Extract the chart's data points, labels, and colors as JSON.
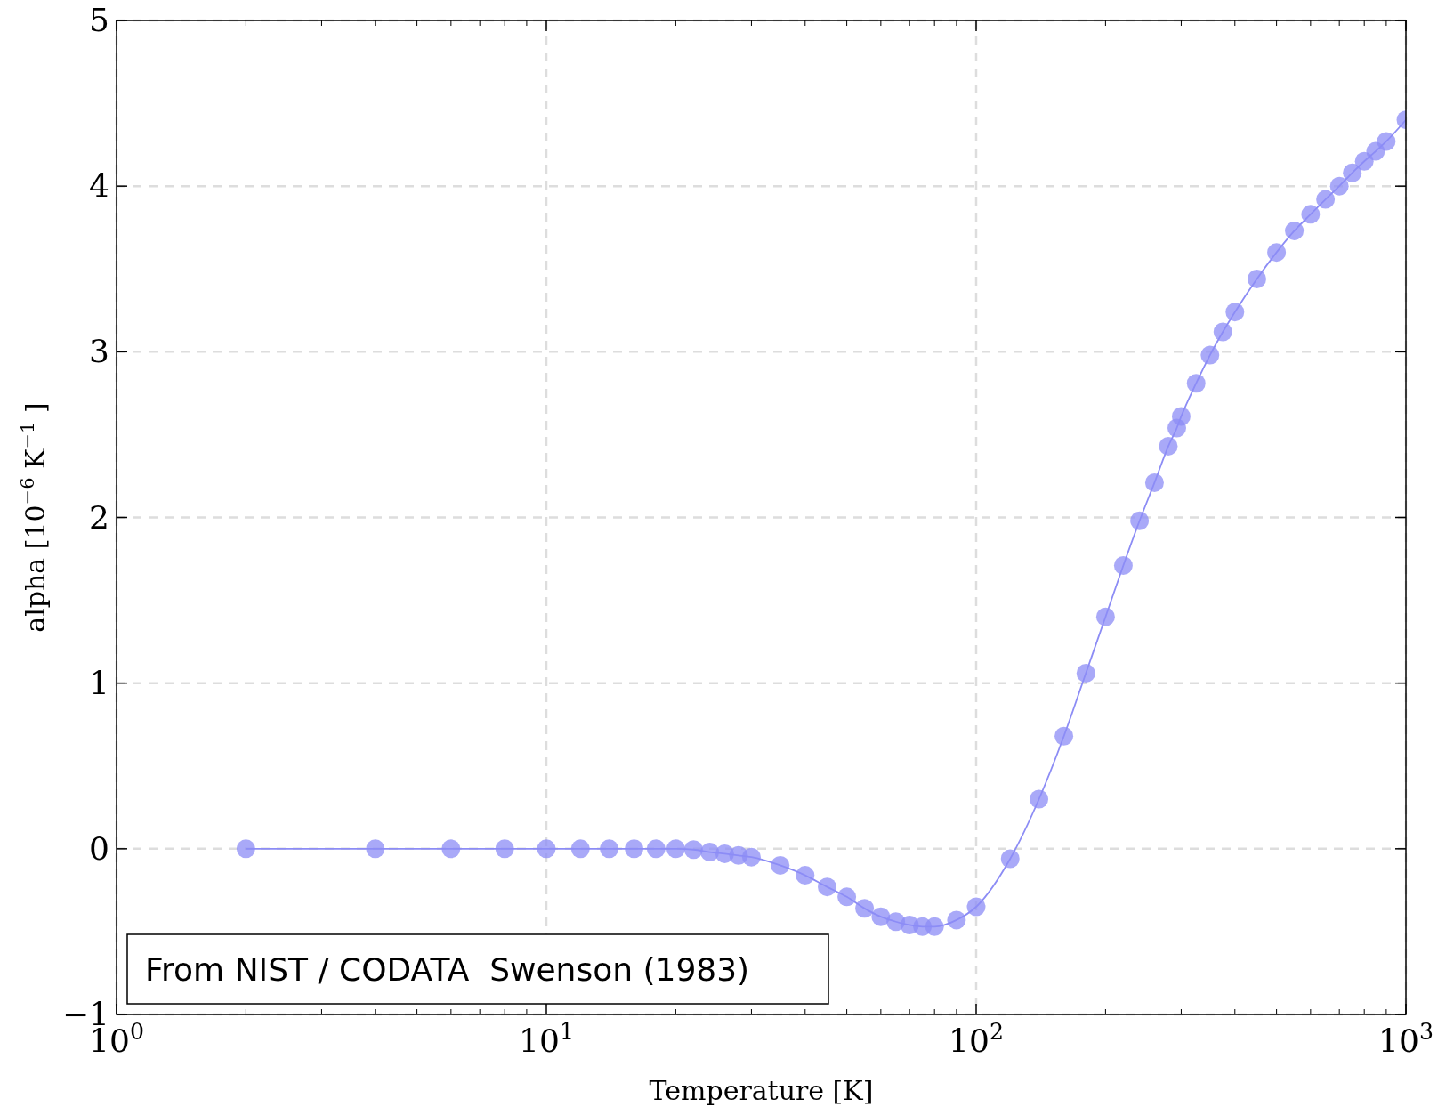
{
  "chart_data": {
    "type": "line",
    "xlabel": "Temperature [K]",
    "ylabel": "alpha [10$^{−6}$ K$^{−1}$ ]",
    "annotations": [
      "From NIST / CODATA  Swenson (1983)"
    ],
    "log": "x",
    "grid": true,
    "marker": "circle",
    "line_style": "solid",
    "xlim": [
      1,
      1000
    ],
    "xticks": [
      {
        "value": 1,
        "label": "10$^{0}$"
      },
      {
        "value": 10,
        "label": "10$^{1}$"
      },
      {
        "value": 100,
        "label": "10$^{2}$"
      },
      {
        "value": 1000,
        "label": "10$^{3}$"
      }
    ],
    "ylim": [
      -1,
      5
    ],
    "yticks": [
      {
        "value": -1,
        "label": "−1"
      },
      0,
      1,
      2,
      3,
      4,
      5
    ],
    "series": [
      {
        "color": "#8c8cf5",
        "x": [
          2,
          4,
          6,
          8,
          10,
          12,
          14,
          16,
          18,
          20,
          22,
          24,
          26,
          28,
          30,
          35,
          40,
          45,
          50,
          55,
          60,
          65,
          70,
          75,
          80,
          90,
          100,
          120,
          140,
          160,
          180,
          200,
          220,
          240,
          260,
          280,
          293,
          300,
          325,
          350,
          375,
          400,
          450,
          500,
          550,
          600,
          650,
          700,
          750,
          800,
          850,
          900,
          1000
        ],
        "values": [
          0,
          0,
          0,
          0,
          0,
          0,
          0,
          0,
          0,
          0,
          -0.005,
          -0.02,
          -0.03,
          -0.04,
          -0.05,
          -0.1,
          -0.16,
          -0.23,
          -0.29,
          -0.36,
          -0.41,
          -0.44,
          -0.46,
          -0.47,
          -0.47,
          -0.43,
          -0.35,
          -0.06,
          0.3,
          0.68,
          1.06,
          1.4,
          1.71,
          1.98,
          2.21,
          2.43,
          2.54,
          2.61,
          2.81,
          2.98,
          3.12,
          3.24,
          3.44,
          3.6,
          3.73,
          3.83,
          3.92,
          4.0,
          4.08,
          4.15,
          4.21,
          4.27,
          4.4
        ]
      }
    ]
  }
}
